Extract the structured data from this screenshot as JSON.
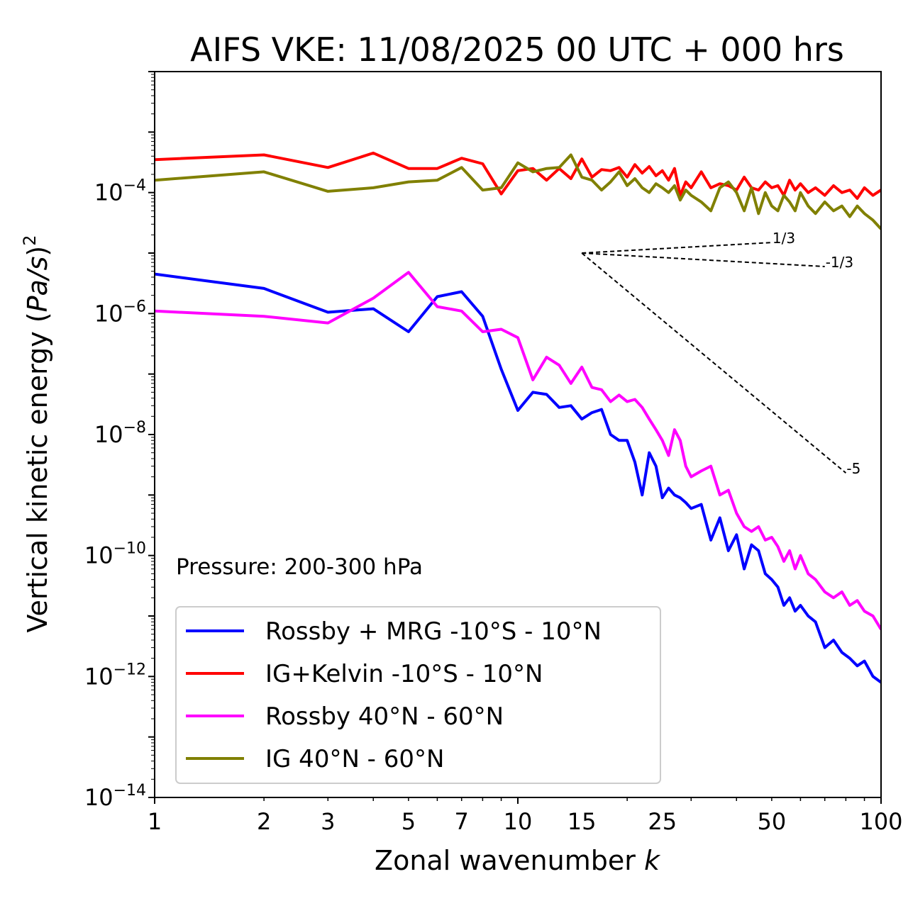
{
  "chart_data": {
    "type": "line",
    "title": "AIFS VKE: 11/08/2025 00 UTC + 000 hrs",
    "xlabel": "Zonal wavenumber",
    "xlabel_var": "k",
    "ylabel_main": "Vertical kinetic energy (",
    "ylabel_var": "Pa/s",
    "ylabel_close": ")",
    "ylabel_sup": "2",
    "x_scale": "log",
    "y_scale": "log",
    "xlim": [
      1,
      100
    ],
    "ylim": [
      1e-14,
      0.01
    ],
    "x_ticks": [
      1,
      2,
      3,
      5,
      7,
      10,
      15,
      25,
      50,
      100
    ],
    "x_tick_labels": [
      "1",
      "2",
      "3",
      "5",
      "7",
      "10",
      "15",
      "25",
      "50",
      "100"
    ],
    "y_tick_exponents": [
      -4,
      -6,
      -8,
      -10,
      -12,
      -14
    ],
    "y_tick_base": "10",
    "y_tick_exponent_labels": [
      "−4",
      "−6",
      "−8",
      "−10",
      "−12",
      "−14"
    ],
    "annotation": "Pressure: 200-300 hPa",
    "legend_position": "lower left",
    "grid": false,
    "reference_slopes": [
      {
        "label": "1/3",
        "exponent": 0.3333,
        "x_start": 15,
        "y_start": 1e-05,
        "x_end": 50
      },
      {
        "label": "-1/3",
        "exponent": -0.3333,
        "x_start": 15,
        "y_start": 1e-05,
        "x_end": 70
      },
      {
        "label": "-5",
        "exponent": -5,
        "x_start": 15,
        "y_start": 1e-05,
        "x_end": 80
      }
    ],
    "series": [
      {
        "name": "Rossby + MRG -10°S - 10°N",
        "color": "#0000ff",
        "x": [
          1,
          2,
          3,
          4,
          5,
          6,
          7,
          8,
          9,
          10,
          11,
          12,
          13,
          14,
          15,
          16,
          17,
          18,
          19,
          20,
          21,
          22,
          23,
          24,
          25,
          26,
          27,
          28,
          29,
          30,
          32,
          34,
          36,
          38,
          40,
          42,
          44,
          46,
          48,
          50,
          52,
          54,
          56,
          58,
          60,
          63,
          66,
          70,
          74,
          78,
          82,
          86,
          90,
          95,
          100
        ],
        "y": [
          4.5e-06,
          2.6e-06,
          1.05e-06,
          1.2e-06,
          5e-07,
          1.9e-06,
          2.3e-06,
          9e-07,
          1.2e-07,
          2.5e-08,
          5e-08,
          4.6e-08,
          2.8e-08,
          3e-08,
          1.8e-08,
          2.3e-08,
          2.6e-08,
          1e-08,
          8e-09,
          8e-09,
          3.5e-09,
          1e-09,
          5e-09,
          3e-09,
          9e-10,
          1.3e-09,
          1e-09,
          9e-10,
          7.5e-10,
          6e-10,
          7e-10,
          1.8e-10,
          4.2e-10,
          1.2e-10,
          2.2e-10,
          6e-11,
          1.5e-10,
          1.2e-10,
          5e-11,
          4e-11,
          3e-11,
          1.5e-11,
          2e-11,
          1.2e-11,
          1.5e-11,
          1e-11,
          8e-12,
          3e-12,
          4e-12,
          2.5e-12,
          2e-12,
          1.5e-12,
          1.8e-12,
          1e-12,
          8e-13
        ]
      },
      {
        "name": "IG+Kelvin -10°S - 10°N",
        "color": "#ff0000",
        "x": [
          1,
          2,
          3,
          4,
          5,
          6,
          7,
          8,
          9,
          10,
          11,
          12,
          13,
          14,
          15,
          16,
          17,
          18,
          19,
          20,
          21,
          22,
          23,
          24,
          25,
          26,
          27,
          28,
          29,
          30,
          32,
          34,
          36,
          38,
          40,
          42,
          44,
          46,
          48,
          50,
          52,
          54,
          56,
          58,
          60,
          63,
          66,
          70,
          74,
          78,
          82,
          86,
          90,
          95,
          100
        ],
        "y": [
          0.00035,
          0.00042,
          0.00026,
          0.00045,
          0.00025,
          0.00025,
          0.00037,
          0.0003,
          9.5e-05,
          0.00023,
          0.00025,
          0.00016,
          0.00025,
          0.00017,
          0.00036,
          0.00018,
          0.00024,
          0.00023,
          0.00026,
          0.00018,
          0.00029,
          0.00021,
          0.00027,
          0.00019,
          0.00023,
          0.00016,
          0.00025,
          9e-05,
          0.00015,
          0.00012,
          0.00022,
          0.00012,
          0.00014,
          0.00013,
          0.00011,
          0.00018,
          0.00012,
          0.00011,
          0.00015,
          0.00012,
          0.00013,
          9e-05,
          0.00016,
          0.00011,
          0.00014,
          0.0001,
          0.00012,
          9e-05,
          0.00013,
          0.0001,
          0.00011,
          8e-05,
          0.00012,
          9e-05,
          0.00011
        ]
      },
      {
        "name": "Rossby 40°N - 60°N",
        "color": "#ff00ff",
        "x": [
          1,
          2,
          3,
          4,
          5,
          6,
          7,
          8,
          9,
          10,
          11,
          12,
          13,
          14,
          15,
          16,
          17,
          18,
          19,
          20,
          21,
          22,
          23,
          24,
          25,
          26,
          27,
          28,
          29,
          30,
          32,
          34,
          36,
          38,
          40,
          42,
          44,
          46,
          48,
          50,
          52,
          54,
          56,
          58,
          60,
          63,
          66,
          70,
          74,
          78,
          82,
          86,
          90,
          95,
          100
        ],
        "y": [
          1.1e-06,
          9e-07,
          7e-07,
          1.8e-06,
          4.8e-06,
          1.3e-06,
          1.1e-06,
          5e-07,
          5.5e-07,
          4e-07,
          8e-08,
          1.9e-07,
          1.4e-07,
          7e-08,
          1.3e-07,
          6e-08,
          5.5e-08,
          3.5e-08,
          4.5e-08,
          3.5e-08,
          3.8e-08,
          2.8e-08,
          1.8e-08,
          1.2e-08,
          8e-09,
          4.5e-09,
          1.2e-08,
          8e-09,
          3e-09,
          2e-09,
          2.5e-09,
          3e-09,
          1e-09,
          1.2e-09,
          5e-10,
          3e-10,
          2.5e-10,
          3e-10,
          1.8e-10,
          2e-10,
          1.4e-10,
          8e-11,
          1.2e-10,
          6e-11,
          1e-10,
          5e-11,
          4e-11,
          2.5e-11,
          2e-11,
          2.5e-11,
          1.5e-11,
          1.8e-11,
          1.2e-11,
          1e-11,
          6e-12
        ]
      },
      {
        "name": "IG 40°N - 60°N",
        "color": "#808000",
        "x": [
          1,
          2,
          3,
          4,
          5,
          6,
          7,
          8,
          9,
          10,
          11,
          12,
          13,
          14,
          15,
          16,
          17,
          18,
          19,
          20,
          21,
          22,
          23,
          24,
          25,
          26,
          27,
          28,
          29,
          30,
          32,
          34,
          36,
          38,
          40,
          42,
          44,
          46,
          48,
          50,
          52,
          54,
          56,
          58,
          60,
          63,
          66,
          70,
          74,
          78,
          82,
          86,
          90,
          95,
          100
        ],
        "y": [
          0.00016,
          0.00022,
          0.000105,
          0.00012,
          0.00015,
          0.00016,
          0.00026,
          0.00011,
          0.00012,
          0.00031,
          0.00022,
          0.00025,
          0.00026,
          0.00042,
          0.00018,
          0.00016,
          0.00011,
          0.00015,
          0.00022,
          0.00013,
          0.00017,
          0.00012,
          0.0001,
          0.00014,
          0.00012,
          0.0001,
          0.00013,
          7.5e-05,
          0.00011,
          9e-05,
          7e-05,
          5e-05,
          0.00012,
          0.00015,
          0.0001,
          5e-05,
          0.00012,
          4.5e-05,
          0.0001,
          6e-05,
          5e-05,
          9e-05,
          7e-05,
          5e-05,
          0.0001,
          6e-05,
          4.5e-05,
          7e-05,
          5e-05,
          6e-05,
          4e-05,
          6e-05,
          4.5e-05,
          3.5e-05,
          2.5e-05
        ]
      }
    ]
  }
}
